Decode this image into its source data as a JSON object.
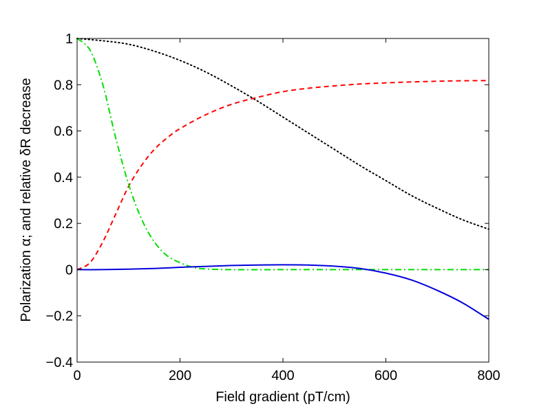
{
  "chart_data": {
    "type": "line",
    "title": "",
    "xlabel": "Field gradient (pT/cm)",
    "ylabel": "Polarization α; and relative δR decrease",
    "xlim": [
      0,
      800
    ],
    "ylim": [
      -0.4,
      1
    ],
    "xticks": [
      0,
      200,
      400,
      600,
      800
    ],
    "xtick_labels": [
      "0",
      "200",
      "400",
      "600",
      "800"
    ],
    "yticks": [
      -0.4,
      -0.2,
      0,
      0.2,
      0.4,
      0.6,
      0.8,
      1
    ],
    "ytick_labels": [
      "−0.4",
      "−0.2",
      "0",
      "0.2",
      "0.4",
      "0.6",
      "0.8",
      "1"
    ],
    "grid": false,
    "legend": "none",
    "series": [
      {
        "name": "dotted-black",
        "color": "#000000",
        "style": "dotted",
        "x": [
          0,
          50,
          100,
          150,
          200,
          250,
          300,
          350,
          400,
          450,
          500,
          550,
          600,
          650,
          700,
          750,
          800
        ],
        "y": [
          1.0,
          0.99,
          0.975,
          0.945,
          0.905,
          0.855,
          0.795,
          0.73,
          0.66,
          0.59,
          0.52,
          0.45,
          0.385,
          0.32,
          0.265,
          0.215,
          0.175
        ]
      },
      {
        "name": "dashed-red",
        "color": "#ff0000",
        "style": "dashed",
        "x": [
          0,
          25,
          50,
          75,
          100,
          125,
          150,
          175,
          200,
          250,
          300,
          350,
          400,
          450,
          500,
          550,
          600,
          650,
          700,
          750,
          800
        ],
        "y": [
          0.0,
          0.03,
          0.12,
          0.24,
          0.36,
          0.45,
          0.52,
          0.57,
          0.61,
          0.67,
          0.715,
          0.745,
          0.77,
          0.785,
          0.795,
          0.803,
          0.808,
          0.812,
          0.815,
          0.817,
          0.818
        ]
      },
      {
        "name": "dashdot-green",
        "color": "#00dd00",
        "style": "dashdot",
        "x": [
          0,
          25,
          50,
          75,
          100,
          125,
          150,
          175,
          200,
          225,
          250,
          300,
          400,
          500,
          600,
          700,
          800
        ],
        "y": [
          1.0,
          0.95,
          0.8,
          0.57,
          0.37,
          0.22,
          0.12,
          0.06,
          0.03,
          0.01,
          0.003,
          0.0,
          0.0,
          0.0,
          0.0,
          0.0,
          0.0
        ]
      },
      {
        "name": "solid-blue",
        "color": "#0000dd",
        "style": "solid",
        "x": [
          0,
          50,
          100,
          150,
          200,
          250,
          300,
          350,
          400,
          450,
          500,
          550,
          600,
          650,
          700,
          750,
          800
        ],
        "y": [
          0.0,
          0.0,
          0.002,
          0.005,
          0.01,
          0.014,
          0.018,
          0.02,
          0.021,
          0.02,
          0.015,
          0.005,
          -0.015,
          -0.045,
          -0.09,
          -0.145,
          -0.215
        ]
      }
    ]
  }
}
